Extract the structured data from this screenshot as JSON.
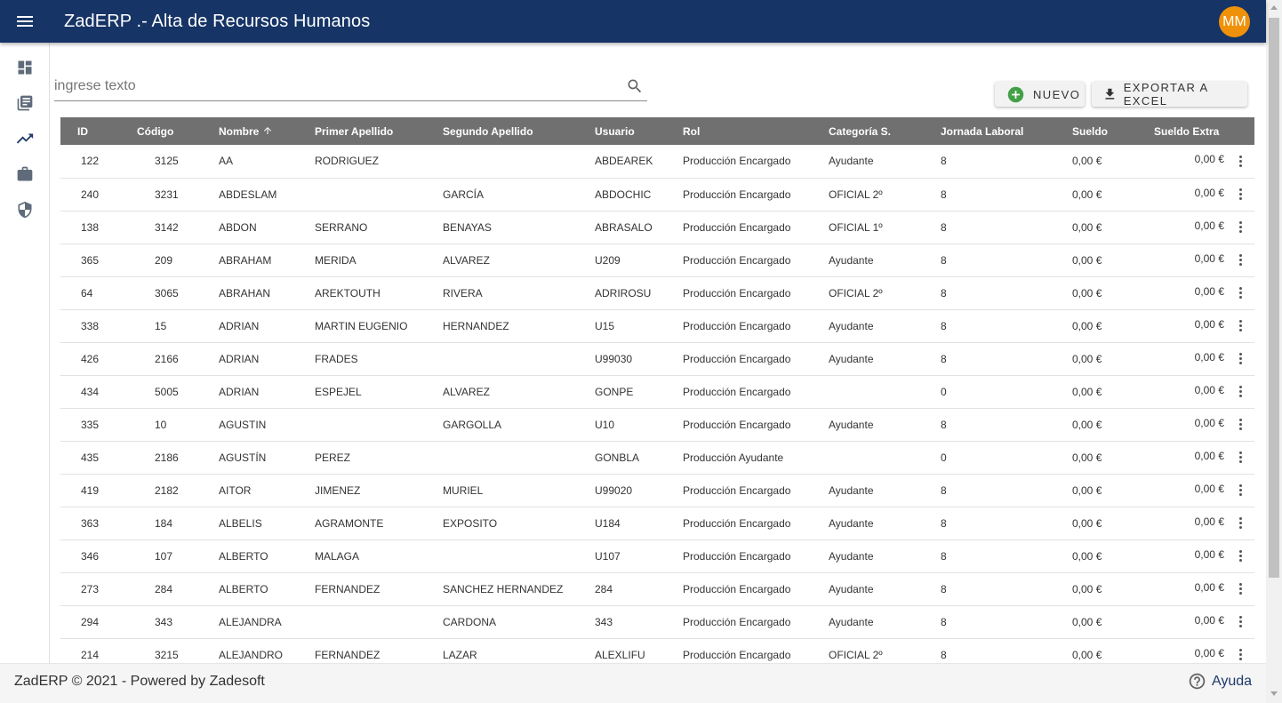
{
  "header": {
    "title": "ZadERP .- Alta de Recursos Humanos",
    "avatar_initials": "MM",
    "color": "#163466"
  },
  "sidebar": {
    "items": [
      {
        "icon": "dashboard-icon"
      },
      {
        "icon": "library-books-icon"
      },
      {
        "icon": "trending-up-icon"
      },
      {
        "icon": "briefcase-icon"
      },
      {
        "icon": "shield-icon"
      }
    ]
  },
  "search": {
    "placeholder": "ingrese texto",
    "value": ""
  },
  "toolbar": {
    "new_label": "NUEVO",
    "export_label": "EXPORTAR A EXCEL"
  },
  "table": {
    "columns": [
      "ID",
      "Código",
      "Nombre",
      "Primer Apellido",
      "Segundo Apellido",
      "Usuario",
      "Rol",
      "Categoría S.",
      "Jornada Laboral",
      "Sueldo",
      "Sueldo Extra"
    ],
    "sorted_column": "Nombre",
    "sort_direction": "asc",
    "rows": [
      [
        "122",
        "3125",
        "AA",
        "RODRIGUEZ",
        "",
        "ABDEAREK",
        "Producción Encargado",
        "Ayudante",
        "8",
        "0,00 €",
        "0,00 €"
      ],
      [
        "240",
        "3231",
        "ABDESLAM",
        "",
        "GARCÍA",
        "ABDOCHIC",
        "Producción Encargado",
        "OFICIAL 2º",
        "8",
        "0,00 €",
        "0,00 €"
      ],
      [
        "138",
        "3142",
        "ABDON",
        "SERRANO",
        "BENAYAS",
        "ABRASALO",
        "Producción Encargado",
        "OFICIAL 1º",
        "8",
        "0,00 €",
        "0,00 €"
      ],
      [
        "365",
        "209",
        "ABRAHAM",
        "MERIDA",
        "ALVAREZ",
        "U209",
        "Producción Encargado",
        "Ayudante",
        "8",
        "0,00 €",
        "0,00 €"
      ],
      [
        "64",
        "3065",
        "ABRAHAN",
        "AREKTOUTH",
        "RIVERA",
        "ADRIROSU",
        "Producción Encargado",
        "OFICIAL 2º",
        "8",
        "0,00 €",
        "0,00 €"
      ],
      [
        "338",
        "15",
        "ADRIAN",
        "MARTIN EUGENIO",
        "HERNANDEZ",
        "U15",
        "Producción Encargado",
        "Ayudante",
        "8",
        "0,00 €",
        "0,00 €"
      ],
      [
        "426",
        "2166",
        "ADRIAN",
        "FRADES",
        "",
        "U99030",
        "Producción Encargado",
        "Ayudante",
        "8",
        "0,00 €",
        "0,00 €"
      ],
      [
        "434",
        "5005",
        "ADRIAN",
        "ESPEJEL",
        "ALVAREZ",
        "GONPE",
        "Producción Encargado",
        "",
        "0",
        "0,00 €",
        "0,00 €"
      ],
      [
        "335",
        "10",
        "AGUSTIN",
        "",
        "GARGOLLA",
        "U10",
        "Producción Encargado",
        "Ayudante",
        "8",
        "0,00 €",
        "0,00 €"
      ],
      [
        "435",
        "2186",
        "AGUSTÍN",
        "PEREZ",
        "",
        "GONBLA",
        "Producción Ayudante",
        "",
        "0",
        "0,00 €",
        "0,00 €"
      ],
      [
        "419",
        "2182",
        "AITOR",
        "JIMENEZ",
        "MURIEL",
        "U99020",
        "Producción Encargado",
        "Ayudante",
        "8",
        "0,00 €",
        "0,00 €"
      ],
      [
        "363",
        "184",
        "ALBELIS",
        "AGRAMONTE",
        "EXPOSITO",
        "U184",
        "Producción Encargado",
        "Ayudante",
        "8",
        "0,00 €",
        "0,00 €"
      ],
      [
        "346",
        "107",
        "ALBERTO",
        "MALAGA",
        "",
        "U107",
        "Producción Encargado",
        "Ayudante",
        "8",
        "0,00 €",
        "0,00 €"
      ],
      [
        "273",
        "284",
        "ALBERTO",
        "FERNANDEZ",
        "SANCHEZ HERNANDEZ",
        "284",
        "Producción Encargado",
        "Ayudante",
        "8",
        "0,00 €",
        "0,00 €"
      ],
      [
        "294",
        "343",
        "ALEJANDRA",
        "",
        "CARDONA",
        "343",
        "Producción Encargado",
        "Ayudante",
        "8",
        "0,00 €",
        "0,00 €"
      ],
      [
        "214",
        "3215",
        "ALEJANDRO",
        "FERNANDEZ",
        "LAZAR",
        "ALEXLIFU",
        "Producción Encargado",
        "OFICIAL 2º",
        "8",
        "0,00 €",
        "0,00 €"
      ]
    ]
  },
  "footer": {
    "copyright": "ZadERP © 2021 - Powered by Zadesoft",
    "help_label": "Ayuda"
  }
}
